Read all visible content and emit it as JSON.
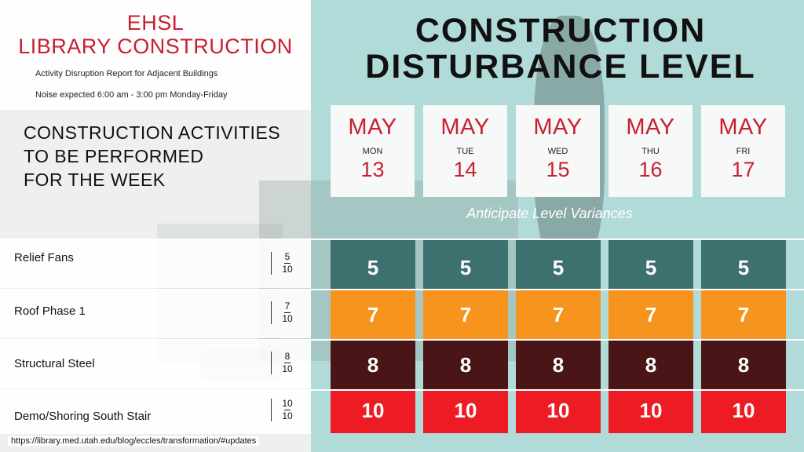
{
  "header": {
    "title_line1": "EHSL",
    "title_line2": "LIBRARY CONSTRUCTION",
    "subtitle": "Activity Disruption Report for Adjacent Buildings",
    "noise_note": "Noise expected 6:00 am - 3:00 pm Monday-Friday"
  },
  "headline": {
    "line1": "CONSTRUCTION",
    "line2": "DISTURBANCE LEVEL"
  },
  "activities_heading": {
    "line1": "CONSTRUCTION ACTIVITIES",
    "line2": "TO BE PERFORMED",
    "line3": "FOR THE WEEK"
  },
  "days": [
    {
      "month": "MAY",
      "dow": "MON",
      "date": "13"
    },
    {
      "month": "MAY",
      "dow": "TUE",
      "date": "14"
    },
    {
      "month": "MAY",
      "dow": "WED",
      "date": "15"
    },
    {
      "month": "MAY",
      "dow": "THU",
      "date": "16"
    },
    {
      "month": "MAY",
      "dow": "FRI",
      "date": "17"
    }
  ],
  "variance_note": "Anticipate Level Variances",
  "activities": [
    {
      "name": "Relief Fans",
      "level": "5",
      "max": "10",
      "color": "#3d7170",
      "values": [
        "5",
        "5",
        "5",
        "5",
        "5"
      ]
    },
    {
      "name": "Roof Phase 1",
      "level": "7",
      "max": "10",
      "color": "#f7941d",
      "values": [
        "7",
        "7",
        "7",
        "7",
        "7"
      ]
    },
    {
      "name": "Structural Steel",
      "level": "8",
      "max": "10",
      "color": "#4a1517",
      "values": [
        "8",
        "8",
        "8",
        "8",
        "8"
      ]
    },
    {
      "name": "Demo/Shoring South Stair",
      "level": "10",
      "max": "10",
      "color": "#ed1c24",
      "values": [
        "10",
        "10",
        "10",
        "10",
        "10"
      ]
    }
  ],
  "footer": {
    "url": "https://library.med.utah.edu/blog/eccles/transformation/#updates"
  }
}
